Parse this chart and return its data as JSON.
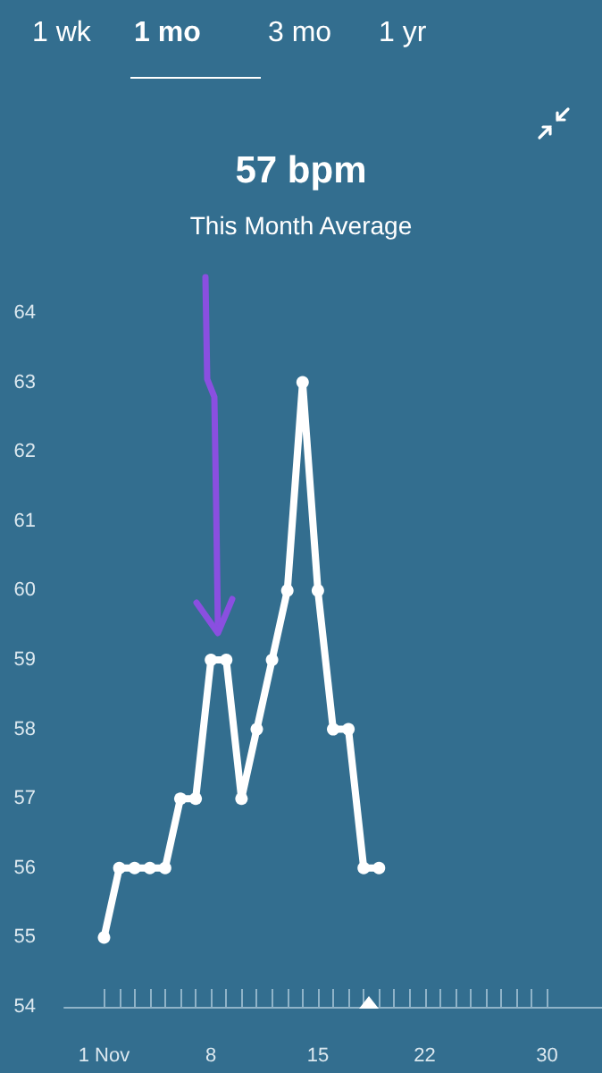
{
  "chart_data": {
    "type": "line",
    "title": "57 bpm",
    "subtitle": "This Month Average",
    "annotations": [
      "1 wk",
      "1 mo",
      "3 mo",
      "1 yr"
    ],
    "x": [
      1,
      2,
      3,
      4,
      5,
      6,
      7,
      8,
      9,
      10,
      11,
      12,
      13,
      14,
      15,
      16,
      17,
      18,
      19
    ],
    "series": [
      {
        "color": "#ffffff",
        "values": [
          55,
          56,
          56,
          56,
          56,
          57,
          57,
          59,
          59,
          57,
          58,
          59,
          60,
          63,
          60,
          58,
          58,
          56,
          56
        ]
      }
    ],
    "xlim": [
      -1.6,
      33.6
    ],
    "xticks": [
      {
        "value": 1,
        "label": "1 Nov"
      },
      {
        "value": 2,
        "label": null
      },
      {
        "value": 3,
        "label": null
      },
      {
        "value": 4,
        "label": null
      },
      {
        "value": 5,
        "label": null
      },
      {
        "value": 6,
        "label": null
      },
      {
        "value": 7,
        "label": null
      },
      8,
      {
        "value": 9,
        "label": null
      },
      {
        "value": 10,
        "label": null
      },
      {
        "value": 11,
        "label": null
      },
      {
        "value": 12,
        "label": null
      },
      {
        "value": 13,
        "label": null
      },
      {
        "value": 14,
        "label": null
      },
      15,
      {
        "value": 16,
        "label": null
      },
      {
        "value": 17,
        "label": null
      },
      {
        "value": 18,
        "label": null
      },
      {
        "value": 19,
        "label": null
      },
      {
        "value": 20,
        "label": null
      },
      {
        "value": 21,
        "label": null
      },
      22,
      {
        "value": 23,
        "label": null
      },
      {
        "value": 24,
        "label": null
      },
      {
        "value": 25,
        "label": null
      },
      {
        "value": 26,
        "label": null
      },
      {
        "value": 27,
        "label": null
      },
      {
        "value": 28,
        "label": null
      },
      {
        "value": 29,
        "label": null
      },
      30
    ],
    "ylim": [
      54,
      64
    ],
    "yticks": [
      54,
      55,
      56,
      57,
      58,
      59,
      60,
      61,
      62,
      63,
      64
    ],
    "grid": false,
    "marker": "circle",
    "line_style": "solid"
  }
}
